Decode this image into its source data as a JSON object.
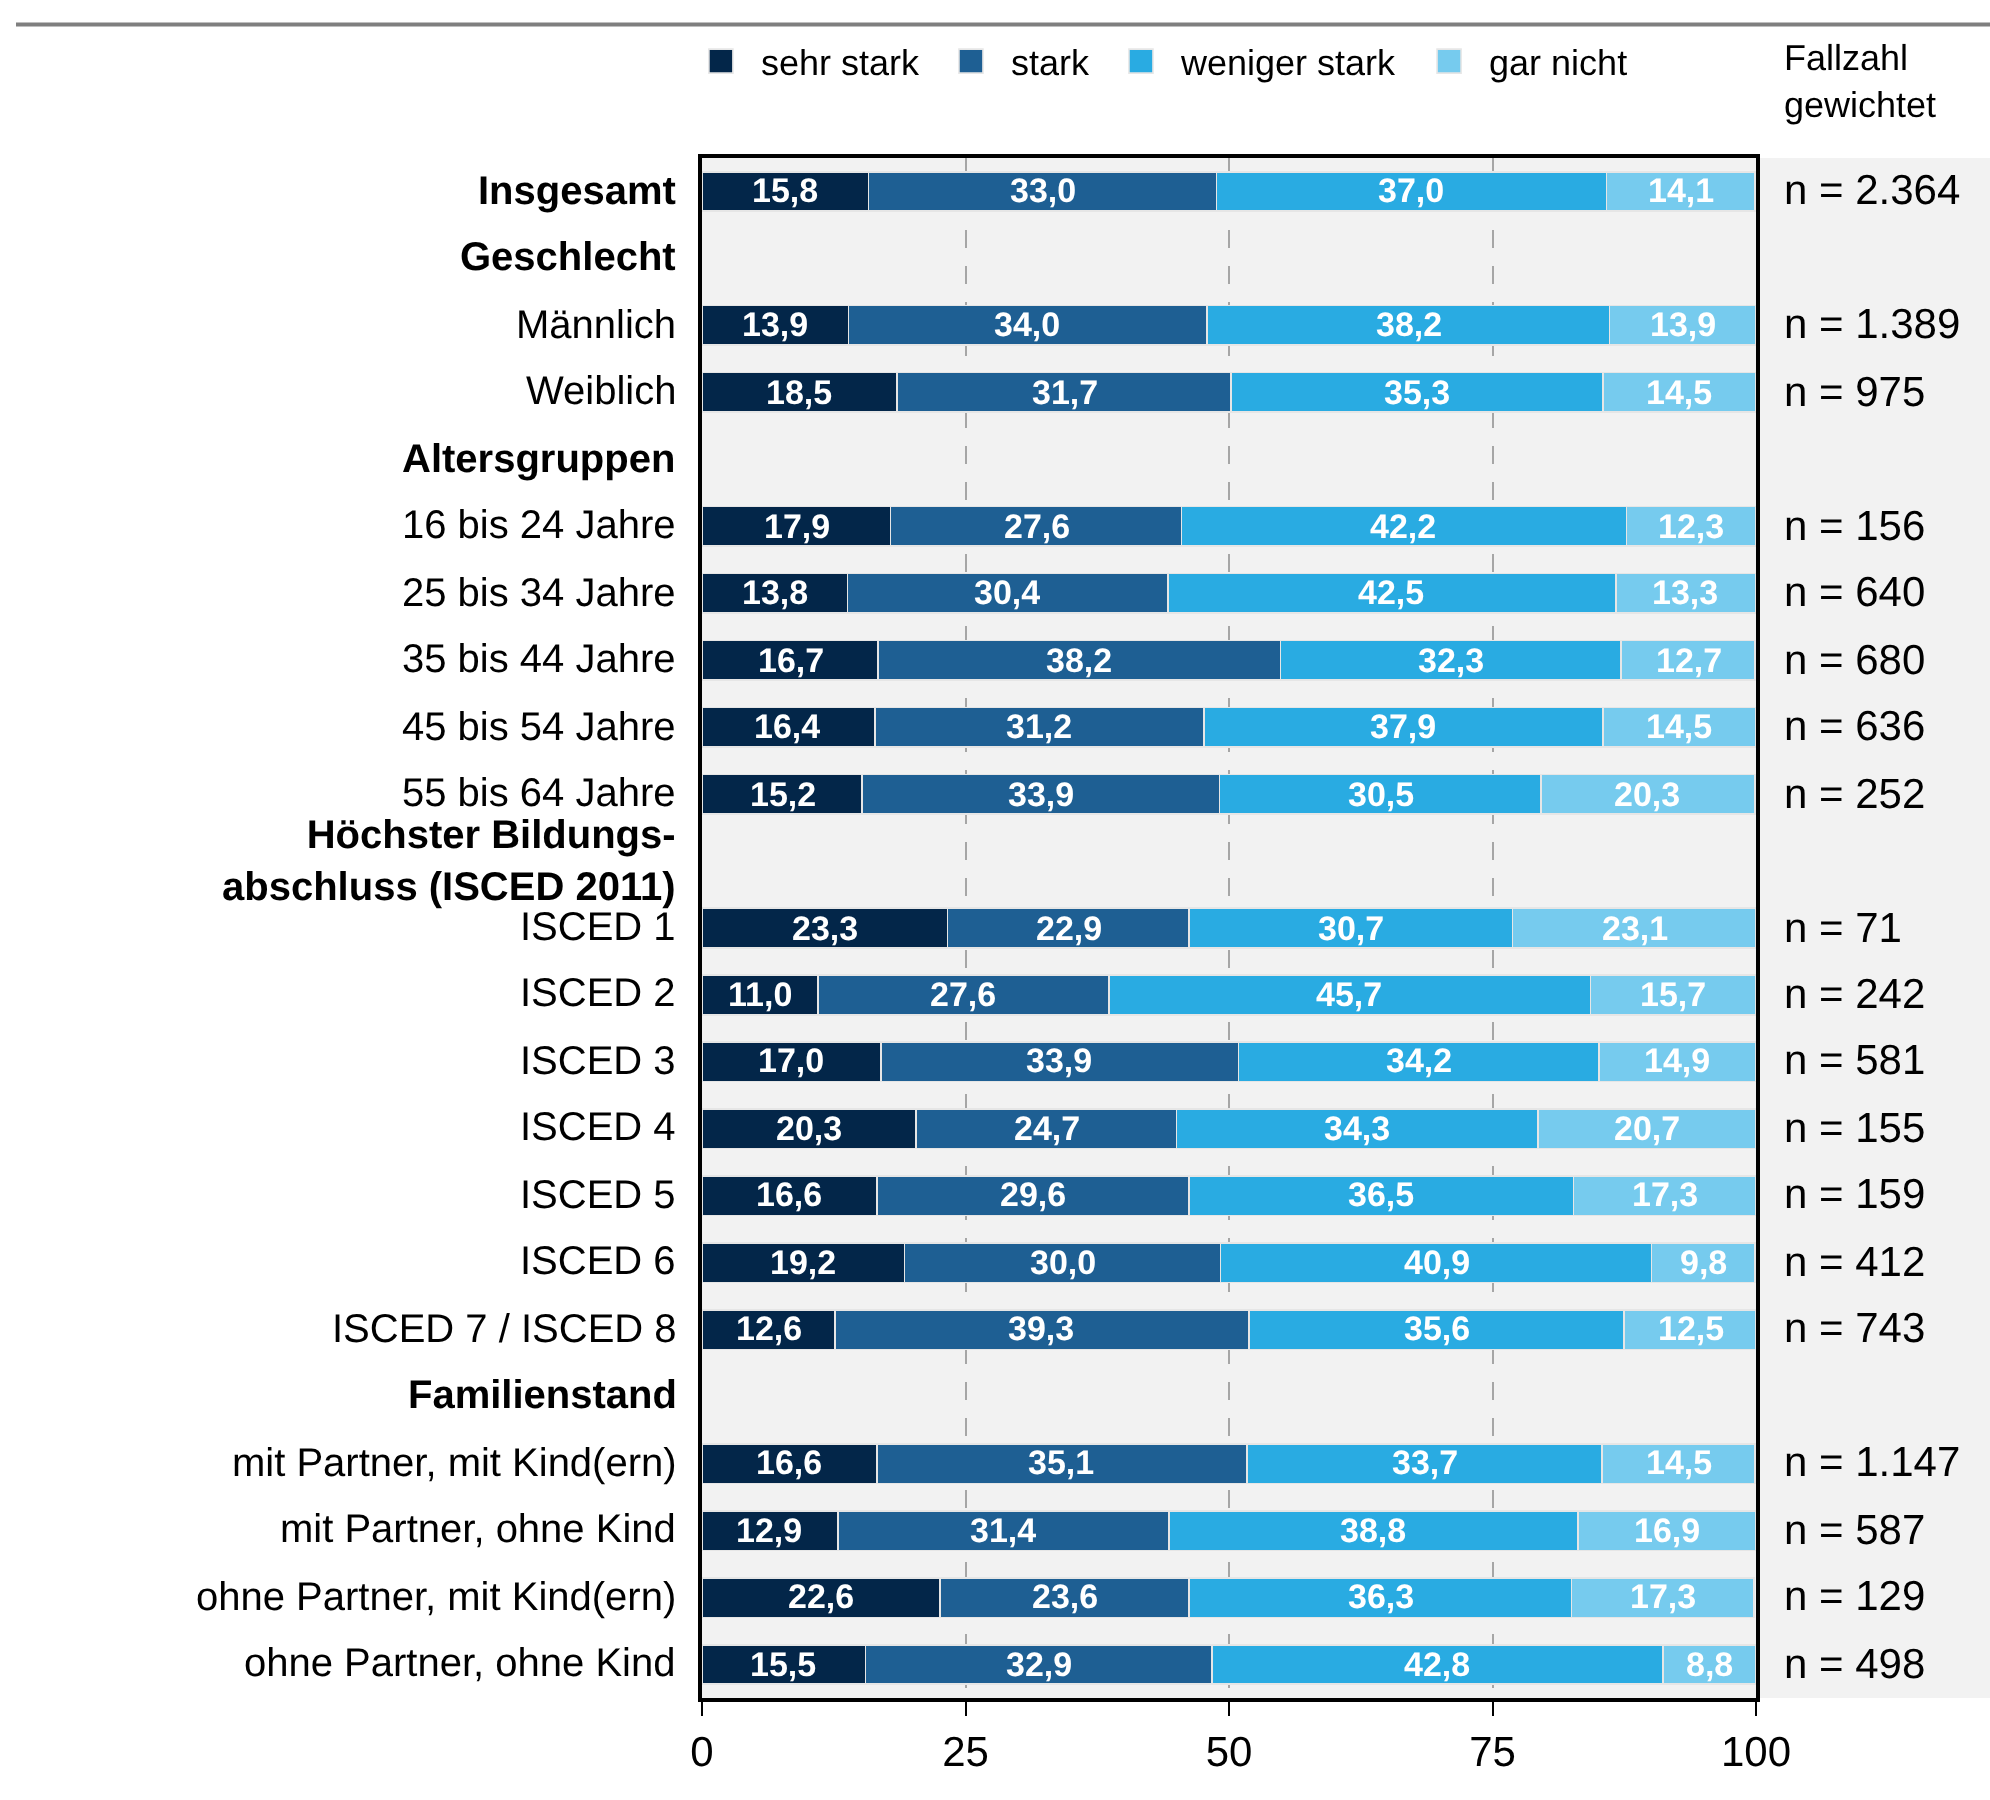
{
  "chart_data": {
    "type": "bar",
    "orientation": "horizontal",
    "stacked": true,
    "categories": [
      "Insgesamt",
      "Geschlecht",
      "Männlich",
      "Weiblich",
      "Altersgruppen",
      "16 bis 24 Jahre",
      "25 bis 34 Jahre",
      "35 bis 44 Jahre",
      "45 bis 54 Jahre",
      "55 bis 64 Jahre",
      "Höchster Bildungs-\nabschluss (ISCED 2011)",
      "ISCED 1",
      "ISCED 2",
      "ISCED 3",
      "ISCED 4",
      "ISCED 5",
      "ISCED 6",
      "ISCED 7 / ISCED 8",
      "Familienstand",
      "mit Partner, mit Kind(ern)",
      "mit Partner, ohne Kind",
      "ohne Partner, mit Kind(ern)",
      "ohne Partner, ohne Kind"
    ],
    "y2_categories": [
      "n = 2.364",
      null,
      "n = 1.389",
      "n = 975",
      null,
      "n = 156",
      "n = 640",
      "n = 680",
      "n = 636",
      "n = 252",
      null,
      "n = 71",
      "n = 242",
      "n = 581",
      "n = 155",
      "n = 159",
      "n = 412",
      "n = 743",
      null,
      "n = 1.147",
      "n = 587",
      "n = 129",
      "n = 498"
    ],
    "y2label": "Fallzahl\ngewichtet",
    "series": [
      {
        "name": "sehr stark",
        "color": "#032649",
        "values": [
          15.8,
          null,
          13.9,
          18.5,
          null,
          17.9,
          13.8,
          16.7,
          16.4,
          15.2,
          null,
          23.3,
          11.0,
          17.0,
          20.3,
          16.6,
          19.2,
          12.6,
          null,
          16.6,
          12.9,
          22.6,
          15.5
        ],
        "value_labels": [
          "15,8",
          null,
          "13,9",
          "18,5",
          null,
          "17,9",
          "13,8",
          "16,7",
          "16,4",
          "15,2",
          null,
          "23,3",
          "11,0",
          "17,0",
          "20,3",
          "16,6",
          "19,2",
          "12,6",
          null,
          "16,6",
          "12,9",
          "22,6",
          "15,5"
        ]
      },
      {
        "name": "stark",
        "color": "#1e5f93",
        "values": [
          33.0,
          null,
          34.0,
          31.7,
          null,
          27.6,
          30.4,
          38.2,
          31.2,
          33.9,
          null,
          22.9,
          27.6,
          33.9,
          24.7,
          29.6,
          30.0,
          39.3,
          null,
          35.1,
          31.4,
          23.6,
          32.9
        ],
        "value_labels": [
          "33,0",
          null,
          "34,0",
          "31,7",
          null,
          "27,6",
          "30,4",
          "38,2",
          "31,2",
          "33,9",
          null,
          "22,9",
          "27,6",
          "33,9",
          "24,7",
          "29,6",
          "30,0",
          "39,3",
          null,
          "35,1",
          "31,4",
          "23,6",
          "32,9"
        ]
      },
      {
        "name": "weniger stark",
        "color": "#29abe2",
        "values": [
          37.0,
          null,
          38.2,
          35.3,
          null,
          42.2,
          42.5,
          32.3,
          37.9,
          30.5,
          null,
          30.7,
          45.7,
          34.2,
          34.3,
          36.5,
          40.9,
          35.6,
          null,
          33.7,
          38.8,
          36.3,
          42.8
        ],
        "value_labels": [
          "37,0",
          null,
          "38,2",
          "35,3",
          null,
          "42,2",
          "42,5",
          "32,3",
          "37,9",
          "30,5",
          null,
          "30,7",
          "45,7",
          "34,2",
          "34,3",
          "36,5",
          "40,9",
          "35,6",
          null,
          "33,7",
          "38,8",
          "36,3",
          "42,8"
        ]
      },
      {
        "name": "gar nicht",
        "color": "#76cbee",
        "values": [
          14.1,
          null,
          13.9,
          14.5,
          null,
          12.3,
          13.3,
          12.7,
          14.5,
          20.3,
          null,
          23.1,
          15.7,
          14.9,
          20.7,
          17.3,
          9.8,
          12.5,
          null,
          14.5,
          16.9,
          17.3,
          8.8
        ],
        "value_labels": [
          "14,1",
          null,
          "13,9",
          "14,5",
          null,
          "12,3",
          "13,3",
          "12,7",
          "14,5",
          "20,3",
          null,
          "23,1",
          "15,7",
          "14,9",
          "20,7",
          "17,3",
          "9,8",
          "12,5",
          null,
          "14,5",
          "16,9",
          "17,3",
          "8,8"
        ]
      }
    ],
    "xlim": [
      0,
      100
    ],
    "xticks": [
      0,
      25,
      50,
      75,
      100
    ],
    "grid": "x",
    "legend": "top"
  }
}
